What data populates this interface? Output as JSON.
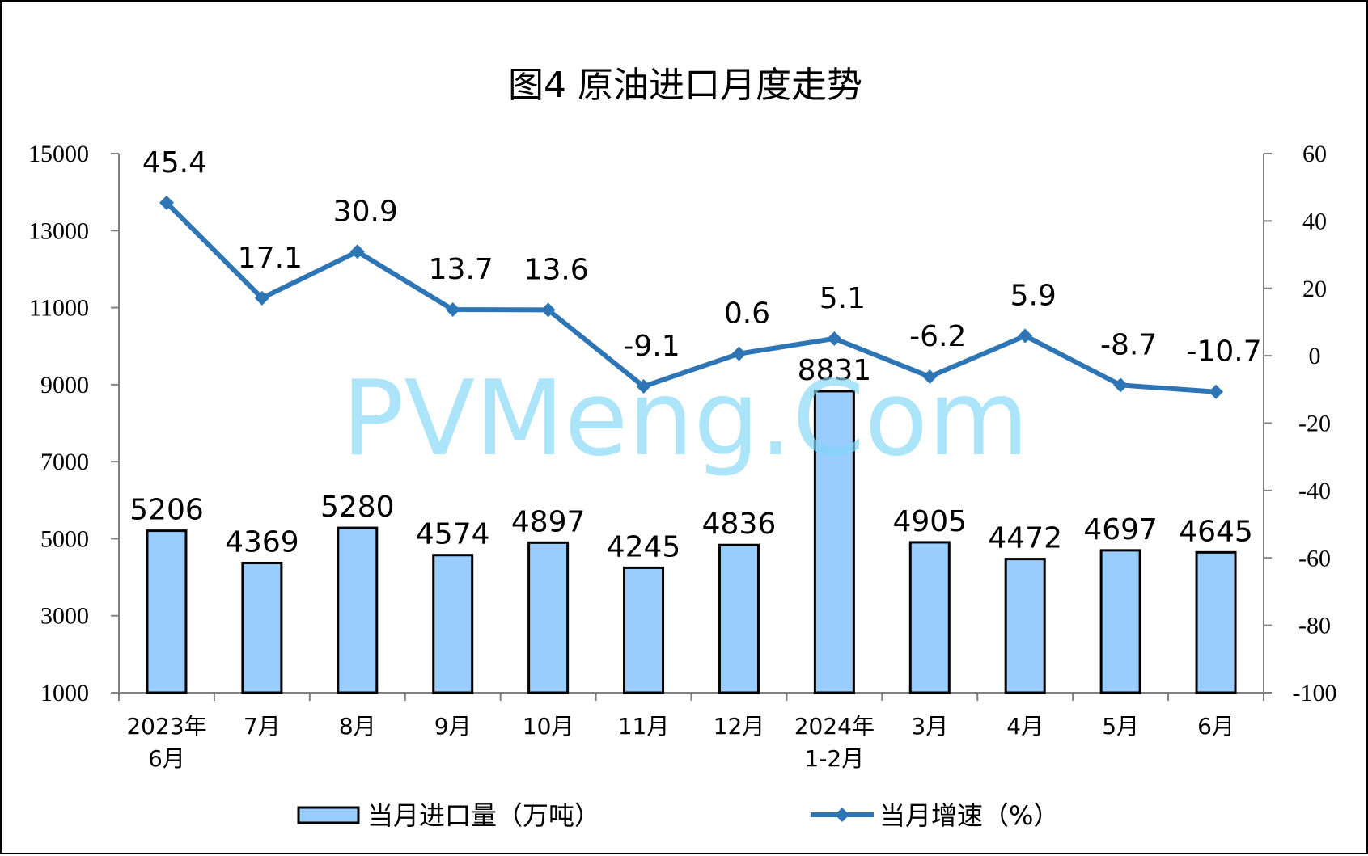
{
  "chart_data": {
    "type": "bar",
    "title": "图4  原油进口月度走势",
    "categories": [
      [
        "2023年",
        "6月"
      ],
      [
        "7月"
      ],
      [
        "8月"
      ],
      [
        "9月"
      ],
      [
        "10月"
      ],
      [
        "11月"
      ],
      [
        "12月"
      ],
      [
        "2024年",
        "1-2月"
      ],
      [
        "3月"
      ],
      [
        "4月"
      ],
      [
        "5月"
      ],
      [
        "6月"
      ]
    ],
    "series": [
      {
        "name": "当月进口量（万吨）",
        "type": "bar",
        "axis": "left",
        "color": "#99ccff",
        "values": [
          5206,
          4369,
          5280,
          4574,
          4897,
          4245,
          4836,
          8831,
          4905,
          4472,
          4697,
          4645
        ]
      },
      {
        "name": "当月增速（%）",
        "type": "line",
        "axis": "right",
        "color": "#2e75b6",
        "marker": "diamond",
        "values": [
          45.4,
          17.1,
          30.9,
          13.7,
          13.6,
          -9.1,
          0.6,
          5.1,
          -6.2,
          5.9,
          -8.7,
          -10.7
        ]
      }
    ],
    "y_left": {
      "ylim": [
        1000,
        15000
      ],
      "ticks": [
        "1000",
        "3000",
        "5000",
        "7000",
        "9000",
        "11000",
        "13000",
        "15000"
      ]
    },
    "y_right": {
      "ylim": [
        -100,
        60
      ],
      "ticks": [
        "-100",
        "-80",
        "-60",
        "-40",
        "-20",
        "0",
        "20",
        "40",
        "60"
      ]
    },
    "legend_position": "bottom",
    "grid": false,
    "watermark": "PVMeng.Com"
  }
}
